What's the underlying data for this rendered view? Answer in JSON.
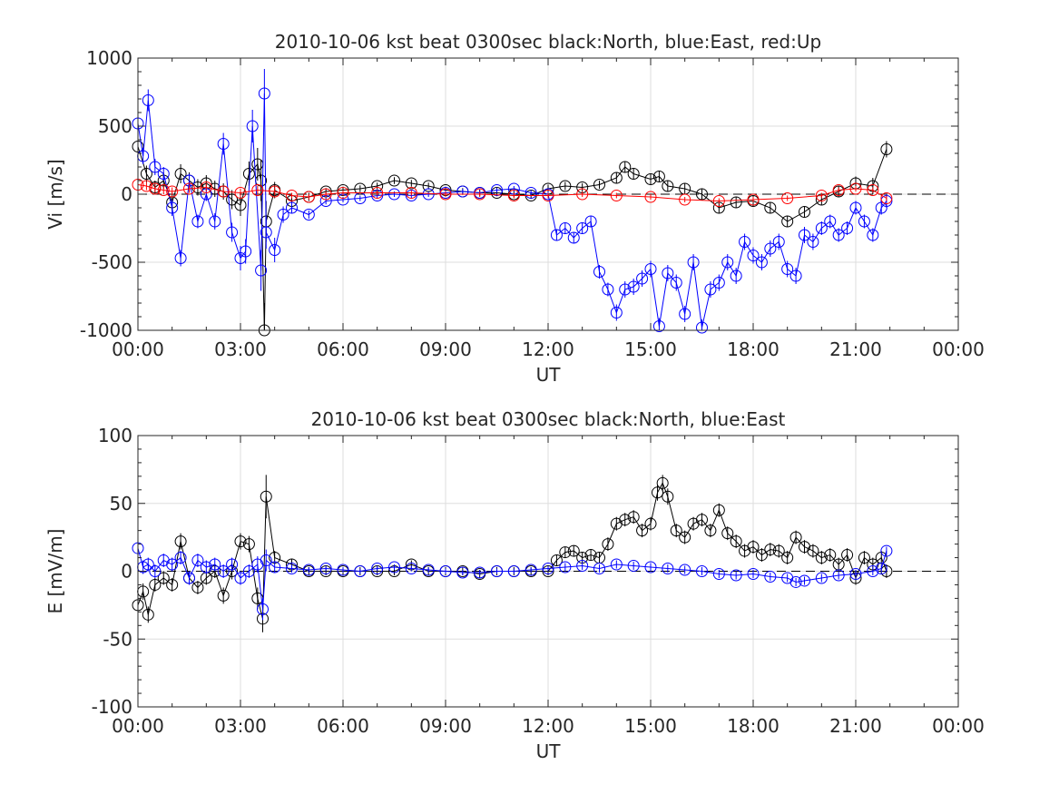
{
  "chart_data": [
    {
      "type": "scatter",
      "title": "2010-10-06 kst beat 0300sec black:North, blue:East, red:Up",
      "xlabel": "UT",
      "ylabel": "Vi [m/s]",
      "xlim": [
        0,
        24
      ],
      "ylim": [
        -1000,
        1000
      ],
      "xticks": [
        "00:00",
        "03:00",
        "06:00",
        "09:00",
        "12:00",
        "15:00",
        "18:00",
        "21:00",
        "00:00"
      ],
      "yticks": [
        "1000",
        "500",
        "0",
        "-500",
        "-1000"
      ],
      "grid": true,
      "x_units": "hours UT",
      "marker": "open circle with error bars",
      "series": [
        {
          "name": "North",
          "color": "#000000",
          "x": [
            0.0,
            0.25,
            0.5,
            0.75,
            1.0,
            1.25,
            1.5,
            1.75,
            2.0,
            2.25,
            2.5,
            2.75,
            3.0,
            3.25,
            3.5,
            3.6,
            3.7,
            3.75,
            4.0,
            4.5,
            5.0,
            5.5,
            6.0,
            6.5,
            7.0,
            7.5,
            8.0,
            8.5,
            9.0,
            9.5,
            10.0,
            10.5,
            11.0,
            11.5,
            12.0,
            12.5,
            13.0,
            13.5,
            14.0,
            14.25,
            14.5,
            15.0,
            15.25,
            15.5,
            16.0,
            16.5,
            17.0,
            17.5,
            18.0,
            18.5,
            19.0,
            19.5,
            20.0,
            20.5,
            21.0,
            21.5,
            21.9
          ],
          "y": [
            350,
            150,
            50,
            100,
            -60,
            150,
            100,
            50,
            80,
            40,
            20,
            -40,
            -80,
            150,
            220,
            100,
            -1000,
            -200,
            30,
            -50,
            -20,
            20,
            30,
            40,
            60,
            100,
            80,
            60,
            30,
            20,
            10,
            10,
            0,
            -10,
            40,
            60,
            50,
            70,
            120,
            200,
            150,
            110,
            130,
            60,
            40,
            0,
            -100,
            -60,
            -50,
            -100,
            -200,
            -130,
            -40,
            20,
            80,
            60,
            330
          ],
          "err": [
            80,
            60,
            50,
            60,
            60,
            70,
            60,
            60,
            60,
            60,
            60,
            70,
            80,
            90,
            120,
            150,
            200,
            150,
            60,
            40,
            30,
            25,
            25,
            25,
            25,
            25,
            25,
            25,
            25,
            25,
            25,
            25,
            25,
            25,
            30,
            30,
            30,
            30,
            40,
            40,
            40,
            40,
            40,
            40,
            40,
            40,
            40,
            40,
            40,
            40,
            40,
            40,
            40,
            40,
            50,
            60,
            60
          ]
        },
        {
          "name": "East",
          "color": "#0000ff",
          "x": [
            0.0,
            0.15,
            0.3,
            0.5,
            0.75,
            1.0,
            1.25,
            1.5,
            1.75,
            2.0,
            2.25,
            2.5,
            2.75,
            3.0,
            3.15,
            3.35,
            3.6,
            3.7,
            3.75,
            4.0,
            4.25,
            4.5,
            5.0,
            5.5,
            6.0,
            6.5,
            7.0,
            7.5,
            8.0,
            8.5,
            9.0,
            9.5,
            10.0,
            10.5,
            11.0,
            11.5,
            12.0,
            12.25,
            12.5,
            12.75,
            13.0,
            13.25,
            13.5,
            13.75,
            14.0,
            14.25,
            14.5,
            14.75,
            15.0,
            15.25,
            15.5,
            15.75,
            16.0,
            16.25,
            16.5,
            16.75,
            17.0,
            17.25,
            17.5,
            17.75,
            18.0,
            18.25,
            18.5,
            18.75,
            19.0,
            19.25,
            19.5,
            19.75,
            20.0,
            20.25,
            20.5,
            20.75,
            21.0,
            21.25,
            21.5,
            21.75,
            21.9
          ],
          "y": [
            520,
            280,
            690,
            200,
            150,
            -100,
            -470,
            100,
            -200,
            0,
            -200,
            370,
            -280,
            -470,
            -420,
            500,
            -560,
            740,
            -280,
            -410,
            -150,
            -100,
            -150,
            -50,
            -40,
            -30,
            -10,
            0,
            -10,
            0,
            10,
            20,
            10,
            30,
            40,
            10,
            0,
            -300,
            -250,
            -320,
            -250,
            -200,
            -570,
            -700,
            -870,
            -700,
            -680,
            -620,
            -550,
            -970,
            -580,
            -650,
            -880,
            -500,
            -980,
            -700,
            -650,
            -500,
            -600,
            -350,
            -450,
            -500,
            -400,
            -350,
            -550,
            -600,
            -300,
            -350,
            -250,
            -200,
            -300,
            -250,
            -100,
            -200,
            -300,
            -100,
            -50
          ],
          "err": [
            80,
            60,
            80,
            60,
            50,
            60,
            60,
            50,
            50,
            50,
            60,
            80,
            70,
            90,
            90,
            120,
            150,
            180,
            120,
            90,
            60,
            40,
            30,
            25,
            20,
            20,
            20,
            20,
            20,
            20,
            20,
            20,
            20,
            20,
            20,
            20,
            20,
            40,
            40,
            40,
            40,
            40,
            50,
            50,
            60,
            60,
            60,
            60,
            60,
            60,
            60,
            60,
            60,
            60,
            60,
            60,
            60,
            60,
            60,
            60,
            60,
            60,
            60,
            60,
            60,
            60,
            60,
            60,
            50,
            50,
            50,
            50,
            50,
            50,
            50,
            50,
            50
          ]
        },
        {
          "name": "Up",
          "color": "#ff0000",
          "x": [
            0.0,
            0.25,
            0.5,
            0.75,
            1.0,
            1.5,
            2.0,
            2.5,
            3.0,
            3.5,
            4.0,
            4.5,
            5.0,
            5.5,
            6.0,
            7.0,
            8.0,
            9.0,
            10.0,
            11.0,
            12.0,
            13.0,
            14.0,
            15.0,
            16.0,
            17.0,
            18.0,
            19.0,
            20.0,
            20.5,
            21.0,
            21.5,
            21.9
          ],
          "y": [
            70,
            60,
            40,
            30,
            20,
            40,
            50,
            20,
            10,
            30,
            20,
            -10,
            -20,
            0,
            10,
            10,
            10,
            0,
            0,
            -10,
            -10,
            0,
            -10,
            -20,
            -40,
            -50,
            -40,
            -30,
            -10,
            30,
            40,
            30,
            -30
          ],
          "err": [
            30,
            30,
            30,
            30,
            30,
            30,
            30,
            30,
            30,
            30,
            30,
            20,
            20,
            20,
            20,
            20,
            20,
            20,
            20,
            20,
            20,
            20,
            20,
            20,
            20,
            20,
            20,
            20,
            20,
            20,
            20,
            20,
            20
          ]
        }
      ]
    },
    {
      "type": "scatter",
      "title": "2010-10-06 kst beat 0300sec black:North, blue:East",
      "xlabel": "UT",
      "ylabel": "E [mV/m]",
      "xlim": [
        0,
        24
      ],
      "ylim": [
        -100,
        100
      ],
      "xticks": [
        "00:00",
        "03:00",
        "06:00",
        "09:00",
        "12:00",
        "15:00",
        "18:00",
        "21:00",
        "00:00"
      ],
      "yticks": [
        "100",
        "50",
        "0",
        "-50",
        "-100"
      ],
      "grid": true,
      "x_units": "hours UT",
      "marker": "open circle with error bars",
      "series": [
        {
          "name": "North",
          "color": "#000000",
          "x": [
            0.0,
            0.15,
            0.3,
            0.5,
            0.75,
            1.0,
            1.25,
            1.5,
            1.75,
            2.0,
            2.25,
            2.5,
            2.75,
            3.0,
            3.25,
            3.5,
            3.65,
            3.75,
            4.0,
            4.5,
            5.0,
            5.5,
            6.0,
            6.5,
            7.0,
            7.5,
            8.0,
            8.5,
            9.0,
            9.5,
            10.0,
            10.5,
            11.0,
            11.5,
            12.0,
            12.25,
            12.5,
            12.75,
            13.0,
            13.25,
            13.5,
            13.75,
            14.0,
            14.25,
            14.5,
            14.75,
            15.0,
            15.2,
            15.35,
            15.5,
            15.75,
            16.0,
            16.25,
            16.5,
            16.75,
            17.0,
            17.25,
            17.5,
            17.75,
            18.0,
            18.25,
            18.5,
            18.75,
            19.0,
            19.25,
            19.5,
            19.75,
            20.0,
            20.25,
            20.5,
            20.75,
            21.0,
            21.25,
            21.5,
            21.75,
            21.9
          ],
          "y": [
            -25,
            -15,
            -32,
            -10,
            -5,
            -10,
            22,
            -5,
            -12,
            -5,
            0,
            -18,
            0,
            22,
            20,
            -20,
            -35,
            55,
            10,
            5,
            0,
            0,
            0,
            0,
            0,
            0,
            5,
            0,
            0,
            0,
            -2,
            0,
            0,
            0,
            0,
            8,
            14,
            15,
            10,
            12,
            10,
            20,
            35,
            38,
            40,
            30,
            35,
            58,
            65,
            55,
            30,
            25,
            35,
            38,
            30,
            45,
            28,
            22,
            15,
            18,
            12,
            16,
            15,
            10,
            25,
            18,
            15,
            10,
            12,
            5,
            12,
            -5,
            10,
            5,
            10,
            0
          ],
          "err": [
            8,
            6,
            6,
            5,
            5,
            5,
            6,
            5,
            5,
            5,
            5,
            6,
            6,
            6,
            6,
            8,
            10,
            16,
            5,
            4,
            3,
            3,
            3,
            3,
            3,
            3,
            3,
            3,
            3,
            3,
            3,
            3,
            3,
            3,
            3,
            4,
            4,
            4,
            4,
            4,
            4,
            5,
            5,
            5,
            5,
            5,
            5,
            6,
            6,
            6,
            5,
            5,
            5,
            5,
            5,
            5,
            5,
            5,
            5,
            5,
            5,
            5,
            5,
            5,
            5,
            5,
            5,
            5,
            5,
            5,
            5,
            5,
            5,
            5,
            5,
            5
          ]
        },
        {
          "name": "East",
          "color": "#0000ff",
          "x": [
            0.0,
            0.15,
            0.3,
            0.5,
            0.75,
            1.0,
            1.25,
            1.5,
            1.75,
            2.0,
            2.25,
            2.5,
            2.75,
            3.0,
            3.25,
            3.5,
            3.65,
            3.75,
            4.0,
            4.5,
            5.0,
            5.5,
            6.0,
            6.5,
            7.0,
            7.5,
            8.0,
            8.5,
            9.0,
            9.5,
            10.0,
            10.5,
            11.0,
            11.5,
            12.0,
            12.5,
            13.0,
            13.5,
            14.0,
            14.5,
            15.0,
            15.5,
            16.0,
            16.5,
            17.0,
            17.5,
            18.0,
            18.5,
            19.0,
            19.25,
            19.5,
            20.0,
            20.5,
            21.0,
            21.5,
            21.75,
            21.9
          ],
          "y": [
            17,
            3,
            5,
            0,
            8,
            5,
            10,
            -5,
            8,
            3,
            5,
            0,
            5,
            -5,
            0,
            5,
            -28,
            8,
            3,
            2,
            1,
            2,
            1,
            0,
            2,
            3,
            2,
            1,
            0,
            -1,
            -1,
            0,
            0,
            1,
            2,
            3,
            4,
            2,
            5,
            4,
            3,
            2,
            1,
            0,
            -2,
            -3,
            -2,
            -4,
            -5,
            -8,
            -7,
            -5,
            -3,
            -2,
            0,
            2,
            15
          ],
          "err": [
            6,
            5,
            5,
            5,
            5,
            5,
            5,
            5,
            5,
            5,
            5,
            5,
            5,
            5,
            5,
            6,
            8,
            8,
            4,
            3,
            2,
            2,
            2,
            2,
            2,
            2,
            2,
            2,
            2,
            2,
            2,
            2,
            2,
            2,
            2,
            3,
            3,
            3,
            3,
            3,
            3,
            3,
            3,
            3,
            3,
            3,
            3,
            3,
            3,
            3,
            3,
            3,
            3,
            3,
            3,
            3,
            3
          ]
        }
      ]
    }
  ]
}
